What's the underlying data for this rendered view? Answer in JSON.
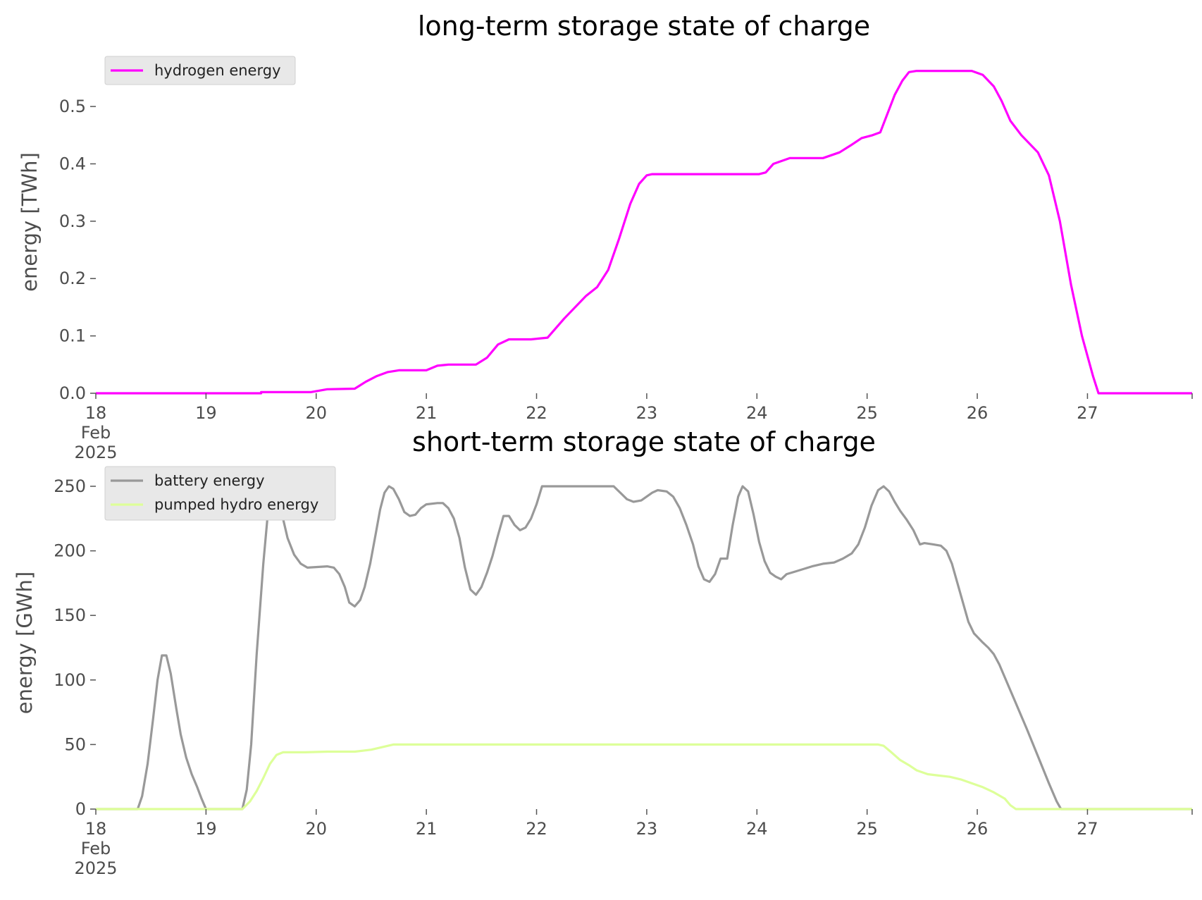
{
  "chart_data": [
    {
      "type": "line",
      "title": "long-term storage state of charge",
      "xlabel": "",
      "ylabel": "energy [TWh]",
      "x_tick_labels": [
        [
          "18",
          "Feb",
          "2025"
        ],
        [
          "19"
        ],
        [
          "20"
        ],
        [
          "21"
        ],
        [
          "22"
        ],
        [
          "23"
        ],
        [
          "24"
        ],
        [
          "25"
        ],
        [
          "26"
        ],
        [
          "27"
        ]
      ],
      "x_tick_days": [
        18,
        19,
        20,
        21,
        22,
        23,
        24,
        25,
        26,
        27
      ],
      "xlim": [
        18,
        27.95
      ],
      "ylim": [
        0,
        0.58
      ],
      "y_ticks": [
        0.0,
        0.1,
        0.2,
        0.3,
        0.4,
        0.5
      ],
      "y_tick_labels": [
        "0.0",
        "0.1",
        "0.2",
        "0.3",
        "0.4",
        "0.5"
      ],
      "grid": false,
      "legend_position": "top-left",
      "series": [
        {
          "name": "hydrogen energy",
          "color": "#ff00ff",
          "points": [
            [
              18.0,
              0.0
            ],
            [
              19.5,
              0.0
            ],
            [
              19.5,
              0.002
            ],
            [
              19.95,
              0.002
            ],
            [
              20.1,
              0.007
            ],
            [
              20.35,
              0.008
            ],
            [
              20.45,
              0.02
            ],
            [
              20.55,
              0.03
            ],
            [
              20.65,
              0.037
            ],
            [
              20.75,
              0.04
            ],
            [
              21.0,
              0.04
            ],
            [
              21.1,
              0.048
            ],
            [
              21.2,
              0.05
            ],
            [
              21.45,
              0.05
            ],
            [
              21.55,
              0.062
            ],
            [
              21.65,
              0.085
            ],
            [
              21.75,
              0.094
            ],
            [
              21.95,
              0.094
            ],
            [
              22.1,
              0.097
            ],
            [
              22.25,
              0.13
            ],
            [
              22.45,
              0.17
            ],
            [
              22.55,
              0.185
            ],
            [
              22.65,
              0.215
            ],
            [
              22.75,
              0.27
            ],
            [
              22.85,
              0.33
            ],
            [
              22.93,
              0.365
            ],
            [
              23.0,
              0.38
            ],
            [
              23.05,
              0.382
            ],
            [
              24.02,
              0.382
            ],
            [
              24.08,
              0.385
            ],
            [
              24.15,
              0.4
            ],
            [
              24.3,
              0.41
            ],
            [
              24.6,
              0.41
            ],
            [
              24.75,
              0.42
            ],
            [
              24.85,
              0.432
            ],
            [
              24.95,
              0.445
            ],
            [
              25.05,
              0.45
            ],
            [
              25.12,
              0.455
            ],
            [
              25.25,
              0.52
            ],
            [
              25.32,
              0.545
            ],
            [
              25.38,
              0.56
            ],
            [
              25.45,
              0.562
            ],
            [
              25.95,
              0.562
            ],
            [
              26.05,
              0.555
            ],
            [
              26.15,
              0.535
            ],
            [
              26.22,
              0.51
            ],
            [
              26.3,
              0.475
            ],
            [
              26.4,
              0.45
            ],
            [
              26.55,
              0.42
            ],
            [
              26.65,
              0.38
            ],
            [
              26.75,
              0.3
            ],
            [
              26.85,
              0.19
            ],
            [
              26.95,
              0.1
            ],
            [
              27.05,
              0.03
            ],
            [
              27.1,
              0.0
            ],
            [
              27.95,
              0.0
            ]
          ]
        }
      ]
    },
    {
      "type": "line",
      "title": "short-term storage state of charge",
      "xlabel": "",
      "ylabel": "energy [GWh]",
      "x_tick_labels": [
        [
          "18",
          "Feb",
          "2025"
        ],
        [
          "19"
        ],
        [
          "20"
        ],
        [
          "21"
        ],
        [
          "22"
        ],
        [
          "23"
        ],
        [
          "24"
        ],
        [
          "25"
        ],
        [
          "26"
        ],
        [
          "27"
        ]
      ],
      "x_tick_days": [
        18,
        19,
        20,
        21,
        22,
        23,
        24,
        25,
        26,
        27
      ],
      "xlim": [
        18,
        27.95
      ],
      "ylim": [
        0,
        262
      ],
      "y_ticks": [
        0,
        50,
        100,
        150,
        200,
        250
      ],
      "y_tick_labels": [
        "0",
        "50",
        "100",
        "150",
        "200",
        "250"
      ],
      "grid": false,
      "legend_position": "top-left",
      "series": [
        {
          "name": "battery energy",
          "color": "#999999",
          "points": [
            [
              18.0,
              0
            ],
            [
              18.38,
              0
            ],
            [
              18.42,
              10
            ],
            [
              18.47,
              35
            ],
            [
              18.52,
              70
            ],
            [
              18.56,
              100
            ],
            [
              18.6,
              119
            ],
            [
              18.64,
              119
            ],
            [
              18.68,
              105
            ],
            [
              18.73,
              78
            ],
            [
              18.77,
              58
            ],
            [
              18.82,
              40
            ],
            [
              18.87,
              27
            ],
            [
              18.92,
              17
            ],
            [
              18.96,
              8
            ],
            [
              19.0,
              0
            ],
            [
              19.33,
              0
            ],
            [
              19.37,
              15
            ],
            [
              19.41,
              50
            ],
            [
              19.46,
              120
            ],
            [
              19.52,
              190
            ],
            [
              19.56,
              228
            ],
            [
              19.6,
              250
            ],
            [
              19.64,
              250
            ],
            [
              19.68,
              232
            ],
            [
              19.74,
              210
            ],
            [
              19.8,
              197
            ],
            [
              19.86,
              190
            ],
            [
              19.92,
              187
            ],
            [
              20.1,
              188
            ],
            [
              20.16,
              187
            ],
            [
              20.21,
              182
            ],
            [
              20.26,
              172
            ],
            [
              20.3,
              160
            ],
            [
              20.35,
              157
            ],
            [
              20.4,
              162
            ],
            [
              20.44,
              172
            ],
            [
              20.49,
              190
            ],
            [
              20.54,
              213
            ],
            [
              20.58,
              232
            ],
            [
              20.62,
              245
            ],
            [
              20.66,
              250
            ],
            [
              20.7,
              248
            ],
            [
              20.75,
              240
            ],
            [
              20.8,
              230
            ],
            [
              20.85,
              227
            ],
            [
              20.9,
              228
            ],
            [
              20.95,
              233
            ],
            [
              21.0,
              236
            ],
            [
              21.1,
              237
            ],
            [
              21.15,
              237
            ],
            [
              21.2,
              233
            ],
            [
              21.25,
              225
            ],
            [
              21.3,
              210
            ],
            [
              21.35,
              187
            ],
            [
              21.4,
              170
            ],
            [
              21.45,
              166
            ],
            [
              21.5,
              172
            ],
            [
              21.55,
              183
            ],
            [
              21.6,
              196
            ],
            [
              21.65,
              212
            ],
            [
              21.7,
              227
            ],
            [
              21.75,
              227
            ],
            [
              21.8,
              220
            ],
            [
              21.85,
              216
            ],
            [
              21.9,
              218
            ],
            [
              21.95,
              225
            ],
            [
              22.0,
              236
            ],
            [
              22.05,
              250
            ],
            [
              22.5,
              250
            ],
            [
              22.7,
              250
            ],
            [
              22.76,
              245
            ],
            [
              22.82,
              240
            ],
            [
              22.88,
              238
            ],
            [
              22.95,
              239
            ],
            [
              23.05,
              245
            ],
            [
              23.1,
              247
            ],
            [
              23.18,
              246
            ],
            [
              23.24,
              242
            ],
            [
              23.3,
              233
            ],
            [
              23.36,
              220
            ],
            [
              23.42,
              205
            ],
            [
              23.47,
              188
            ],
            [
              23.52,
              178
            ],
            [
              23.57,
              176
            ],
            [
              23.62,
              182
            ],
            [
              23.67,
              194
            ],
            [
              23.73,
              194
            ],
            [
              23.78,
              220
            ],
            [
              23.83,
              242
            ],
            [
              23.87,
              250
            ],
            [
              23.92,
              246
            ],
            [
              23.97,
              228
            ],
            [
              24.02,
              207
            ],
            [
              24.07,
              192
            ],
            [
              24.12,
              183
            ],
            [
              24.17,
              180
            ],
            [
              24.22,
              178
            ],
            [
              24.27,
              182
            ],
            [
              24.35,
              184
            ],
            [
              24.5,
              188
            ],
            [
              24.6,
              190
            ],
            [
              24.7,
              191
            ],
            [
              24.78,
              194
            ],
            [
              24.86,
              198
            ],
            [
              24.92,
              205
            ],
            [
              24.98,
              218
            ],
            [
              25.04,
              235
            ],
            [
              25.1,
              247
            ],
            [
              25.15,
              250
            ],
            [
              25.2,
              246
            ],
            [
              25.25,
              238
            ],
            [
              25.3,
              231
            ],
            [
              25.36,
              224
            ],
            [
              25.42,
              216
            ],
            [
              25.48,
              205
            ],
            [
              25.52,
              206
            ],
            [
              25.6,
              205
            ],
            [
              25.67,
              204
            ],
            [
              25.72,
              200
            ],
            [
              25.77,
              190
            ],
            [
              25.82,
              175
            ],
            [
              25.87,
              160
            ],
            [
              25.92,
              145
            ],
            [
              25.97,
              136
            ],
            [
              26.05,
              129
            ],
            [
              26.1,
              125
            ],
            [
              26.15,
              120
            ],
            [
              26.2,
              112
            ],
            [
              26.27,
              98
            ],
            [
              26.35,
              82
            ],
            [
              26.45,
              62
            ],
            [
              26.55,
              41
            ],
            [
              26.65,
              20
            ],
            [
              26.72,
              6
            ],
            [
              26.76,
              0
            ],
            [
              27.95,
              0
            ]
          ]
        },
        {
          "name": "pumped hydro energy",
          "color": "#ddff99",
          "points": [
            [
              18.0,
              0
            ],
            [
              19.33,
              0
            ],
            [
              19.4,
              6
            ],
            [
              19.46,
              14
            ],
            [
              19.52,
              24
            ],
            [
              19.58,
              35
            ],
            [
              19.64,
              42
            ],
            [
              19.7,
              44
            ],
            [
              19.9,
              44
            ],
            [
              20.1,
              44.5
            ],
            [
              20.35,
              44.5
            ],
            [
              20.5,
              46
            ],
            [
              20.6,
              48
            ],
            [
              20.7,
              50
            ],
            [
              25.0,
              50
            ],
            [
              25.1,
              50
            ],
            [
              25.15,
              49
            ],
            [
              25.22,
              44
            ],
            [
              25.3,
              38
            ],
            [
              25.38,
              34
            ],
            [
              25.45,
              30
            ],
            [
              25.55,
              27
            ],
            [
              25.65,
              26
            ],
            [
              25.75,
              25
            ],
            [
              25.85,
              23
            ],
            [
              25.95,
              20
            ],
            [
              26.05,
              17
            ],
            [
              26.15,
              13
            ],
            [
              26.25,
              8
            ],
            [
              26.3,
              3
            ],
            [
              26.35,
              0
            ],
            [
              27.95,
              0
            ]
          ]
        }
      ]
    }
  ]
}
